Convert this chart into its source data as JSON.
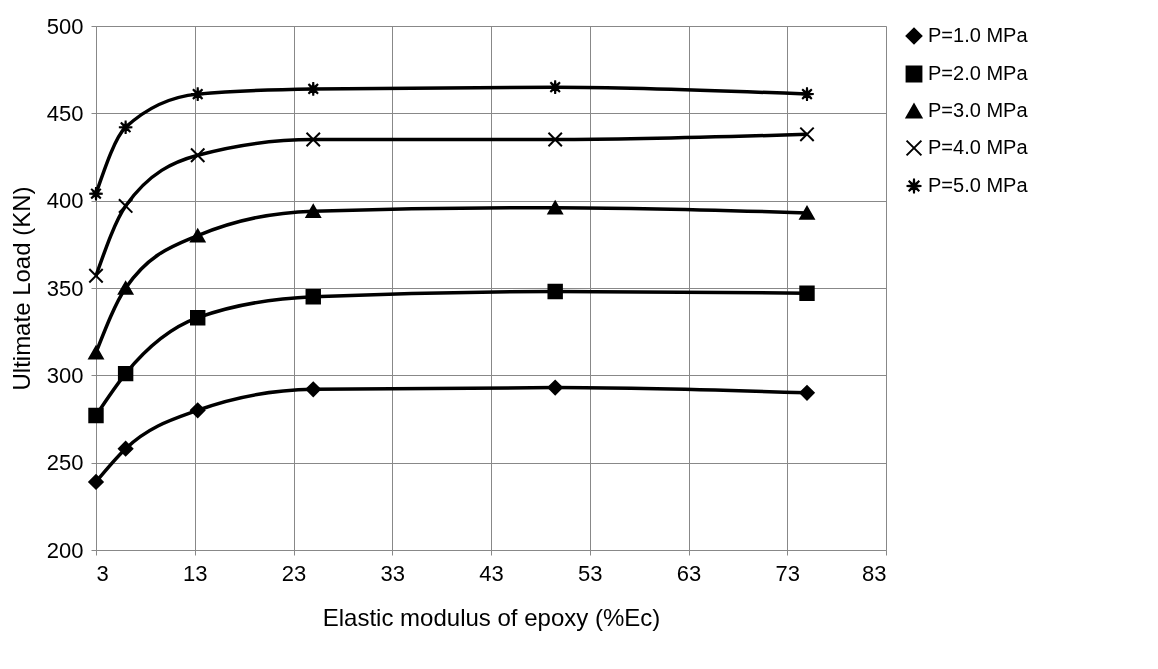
{
  "chart_data": {
    "type": "line",
    "xlabel": "Elastic modulus of epoxy (%Ec)",
    "ylabel": "Ultimate Load (KN)",
    "x": [
      3,
      6,
      13.3,
      25,
      49.5,
      75
    ],
    "xlim": [
      3,
      83
    ],
    "xticks": [
      3,
      13,
      23,
      33,
      43,
      53,
      63,
      73,
      83
    ],
    "ylim": [
      200,
      500
    ],
    "yticks": [
      200,
      250,
      300,
      350,
      400,
      450,
      500
    ],
    "grid": true,
    "legend": "right",
    "line_style": "solid",
    "series": [
      {
        "name": "P=1.0 MPa",
        "color": "#000000",
        "marker": "diamond",
        "values": [
          239,
          258,
          280,
          292,
          293,
          290
        ]
      },
      {
        "name": "P=2.0 MPa",
        "color": "#000000",
        "marker": "square",
        "values": [
          277,
          301,
          333,
          345,
          348,
          347
        ]
      },
      {
        "name": "P=3.0 MPa",
        "color": "#000000",
        "marker": "triangle",
        "values": [
          313,
          350,
          380,
          394,
          396,
          393
        ]
      },
      {
        "name": "P=4.0 MPa",
        "color": "#000000",
        "marker": "cross",
        "values": [
          357,
          397,
          426,
          435,
          435,
          438
        ]
      },
      {
        "name": "P=5.0 MPa",
        "color": "#000000",
        "marker": "star",
        "values": [
          404,
          442,
          461,
          464,
          465,
          461
        ]
      }
    ]
  }
}
